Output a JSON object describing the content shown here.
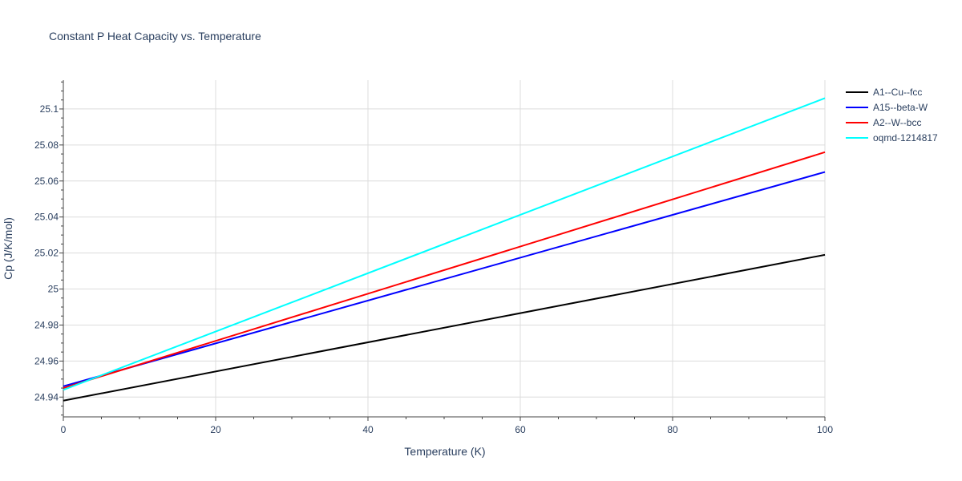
{
  "chart_data": {
    "type": "line",
    "title": "Constant P Heat Capacity vs. Temperature",
    "xlabel": "Temperature (K)",
    "ylabel": "Cp (J/K/mol)",
    "xlim": [
      0,
      100
    ],
    "ylim": [
      24.929,
      25.116
    ],
    "xticks": [
      0,
      20,
      40,
      60,
      80,
      100
    ],
    "xtick_labels": [
      "0",
      "20",
      "40",
      "60",
      "80",
      "100"
    ],
    "yticks": [
      24.94,
      24.96,
      24.98,
      25.0,
      25.02,
      25.04,
      25.06,
      25.08,
      25.1
    ],
    "ytick_labels": [
      "24.94",
      "24.96",
      "24.98",
      "25",
      "25.02",
      "25.04",
      "25.06",
      "25.08",
      "25.1"
    ],
    "grid": true,
    "legend_position": "top-right",
    "series": [
      {
        "name": "A1--Cu--fcc",
        "color": "#000000",
        "x": [
          0,
          100
        ],
        "y": [
          24.938,
          25.019
        ]
      },
      {
        "name": "A15--beta-W",
        "color": "#0000ff",
        "x": [
          0,
          100
        ],
        "y": [
          24.946,
          25.065
        ]
      },
      {
        "name": "A2--W--bcc",
        "color": "#ff0000",
        "x": [
          0,
          100
        ],
        "y": [
          24.945,
          25.076
        ]
      },
      {
        "name": "oqmd-1214817",
        "color": "#00ffff",
        "x": [
          0,
          100
        ],
        "y": [
          24.944,
          25.106
        ]
      }
    ]
  }
}
